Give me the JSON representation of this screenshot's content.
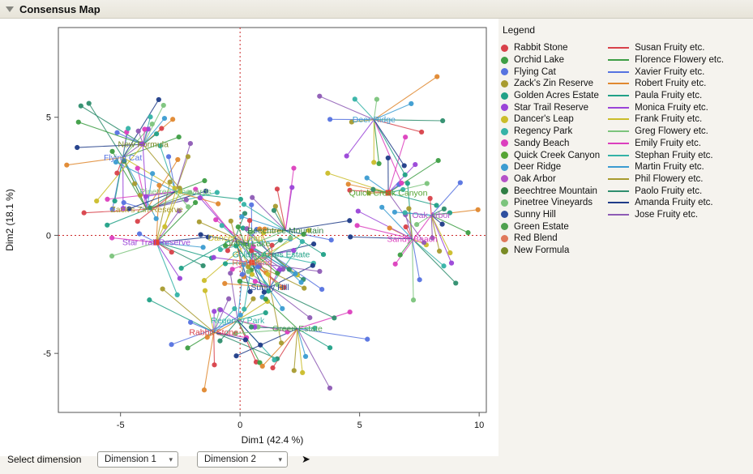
{
  "window": {
    "title": "Consensus Map"
  },
  "legend": {
    "title": "Legend"
  },
  "controls": {
    "label": "Select dimension",
    "dim1_value": "Dimension 1",
    "dim2_value": "Dimension 2",
    "next_icon": "➤",
    "chevron": "▾"
  },
  "chart_data": {
    "type": "scatter",
    "title": "Consensus Map",
    "xlabel": "Dim1 (42.4 %)",
    "ylabel": "Dim2 (18.1 %)",
    "xlim": [
      -7.6,
      10.3
    ],
    "ylim": [
      -7.5,
      8.8
    ],
    "xticks": [
      -5,
      0,
      5,
      10
    ],
    "yticks": [
      -5,
      0,
      5
    ],
    "reference_line_x": 0,
    "reference_line_y": 0,
    "reference_line_color": "#cc2a2a",
    "legend_position": "right",
    "seed": 20,
    "square_color": "#e8432e",
    "square_marker_products": [
      "Star Trail Reserve",
      "Quick Creek Canyon",
      "Red Blend"
    ],
    "products": [
      {
        "name": "Rabbit Stone",
        "color": "#d8414a",
        "x": -1.1,
        "y": -4.1,
        "spread": 2.3
      },
      {
        "name": "Orchid Lake",
        "color": "#3e9e45",
        "x": 0.3,
        "y": -0.35,
        "spread": 2.1
      },
      {
        "name": "Flying Cat",
        "color": "#5673e0",
        "x": -4.9,
        "y": 3.3,
        "spread": 2.4
      },
      {
        "name": "Zack's Zin Reserve",
        "color": "#a89b2f",
        "x": -3.9,
        "y": 1.1,
        "spread": 2.3
      },
      {
        "name": "Golden Acres Estate",
        "color": "#21a187",
        "x": 1.3,
        "y": -0.8,
        "spread": 2.1
      },
      {
        "name": "Star Trail Reserve",
        "color": "#9a44d8",
        "x": -3.5,
        "y": -0.3,
        "spread": 2.3
      },
      {
        "name": "Dancer's Leap",
        "color": "#cbbd2a",
        "x": -0.2,
        "y": -0.1,
        "spread": 2.2
      },
      {
        "name": "Regency Park",
        "color": "#35b3a7",
        "x": -0.1,
        "y": -3.6,
        "spread": 2.3
      },
      {
        "name": "Sandy Beach",
        "color": "#dc3fbe",
        "x": 7.2,
        "y": -0.15,
        "spread": 2.2
      },
      {
        "name": "Quick Creek Canyon",
        "color": "#55a433",
        "x": 6.2,
        "y": 1.8,
        "spread": 2.2
      },
      {
        "name": "Deer Ridge",
        "color": "#3c9cd1",
        "x": 5.6,
        "y": 4.9,
        "spread": 2.7
      },
      {
        "name": "Oak Arbor",
        "color": "#b552c8",
        "x": 8.0,
        "y": 0.85,
        "spread": 2.1
      },
      {
        "name": "Beechtree Mountain",
        "color": "#2f7e44",
        "x": 1.9,
        "y": 0.2,
        "spread": 2.2
      },
      {
        "name": "Pinetree Vineyards",
        "color": "#7cc47c",
        "x": -2.7,
        "y": 1.85,
        "spread": 2.2
      },
      {
        "name": "Sunny Hill",
        "color": "#2e4f9e",
        "x": 1.25,
        "y": -2.2,
        "spread": 2.2
      },
      {
        "name": "Green Estate",
        "color": "#4fa14f",
        "x": 2.4,
        "y": -3.95,
        "spread": 2.3
      },
      {
        "name": "Red Blend",
        "color": "#e0785a",
        "x": 0.5,
        "y": -1.15,
        "spread": 2.0
      },
      {
        "name": "New Formula",
        "color": "#7a8b25",
        "x": -4.05,
        "y": 3.85,
        "spread": 2.5
      }
    ],
    "assessors": [
      {
        "name": "Susan Fruity etc.",
        "color": "#d8414a"
      },
      {
        "name": "Florence Flowery etc.",
        "color": "#3e9e45"
      },
      {
        "name": "Xavier Fruity etc.",
        "color": "#5673e0"
      },
      {
        "name": "Robert Fruity etc.",
        "color": "#e0882f"
      },
      {
        "name": "Paula Fruity etc.",
        "color": "#21a187"
      },
      {
        "name": "Monica Fruity etc.",
        "color": "#9a44d8"
      },
      {
        "name": "Frank Fruity etc.",
        "color": "#cbbd2a"
      },
      {
        "name": "Greg Flowery etc.",
        "color": "#7cc47c"
      },
      {
        "name": "Emily Fruity etc.",
        "color": "#dc3fbe"
      },
      {
        "name": "Stephan Fruity etc.",
        "color": "#35b3a7"
      },
      {
        "name": "Martin Fruity etc.",
        "color": "#3c9cd1"
      },
      {
        "name": "Phil Flowery etc.",
        "color": "#a89b2f"
      },
      {
        "name": "Paolo Fruity etc.",
        "color": "#2f8e6e"
      },
      {
        "name": "Amanda Fruity etc.",
        "color": "#1f3c88"
      },
      {
        "name": "Jose Fruity etc.",
        "color": "#8e5bb5"
      }
    ]
  }
}
